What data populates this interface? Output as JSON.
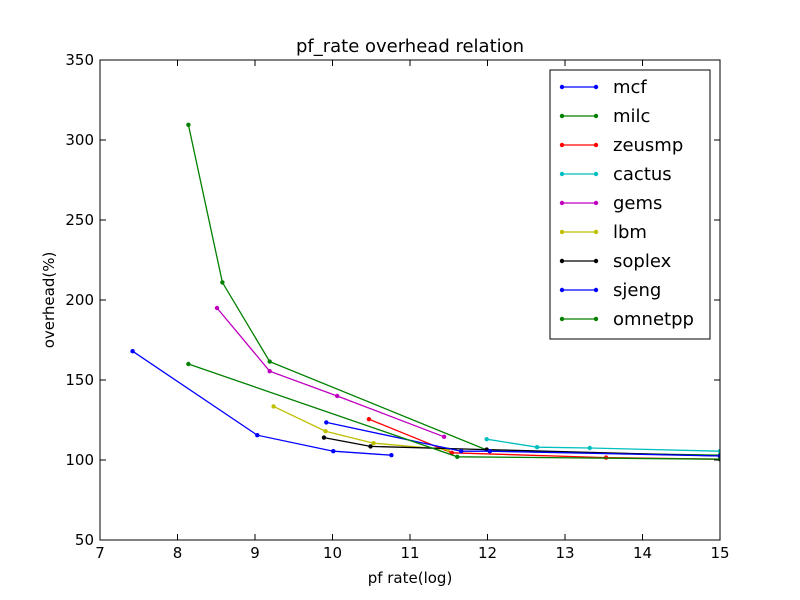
{
  "chart_data": {
    "type": "line",
    "title": "pf_rate overhead relation",
    "xlabel": "pf rate(log)",
    "ylabel": "overhead(%)",
    "xlim": [
      7,
      15
    ],
    "ylim": [
      50,
      350
    ],
    "xticks": [
      7,
      8,
      9,
      10,
      11,
      12,
      13,
      14,
      15
    ],
    "yticks": [
      50,
      100,
      150,
      200,
      250,
      300,
      350
    ],
    "grid": false,
    "legend_position": "top-right",
    "series": [
      {
        "name": "mcf",
        "color": "#0000ff",
        "points": [
          [
            7.42,
            168
          ],
          [
            9.03,
            115.5
          ],
          [
            10.01,
            105.5
          ],
          [
            10.76,
            103
          ]
        ]
      },
      {
        "name": "milc",
        "color": "#008000",
        "points": [
          [
            8.14,
            309.5
          ],
          [
            8.58,
            211
          ],
          [
            9.19,
            161.5
          ],
          [
            12.03,
            105.5
          ],
          [
            15,
            103
          ]
        ]
      },
      {
        "name": "zeusmp",
        "color": "#ff0000",
        "points": [
          [
            10.47,
            125.5
          ],
          [
            11.54,
            104.5
          ],
          [
            13.53,
            101.5
          ],
          [
            15,
            100.5
          ]
        ]
      },
      {
        "name": "cactus",
        "color": "#00bfbf",
        "points": [
          [
            11.99,
            113
          ],
          [
            12.64,
            108
          ],
          [
            13.32,
            107.5
          ],
          [
            15,
            105.5
          ]
        ]
      },
      {
        "name": "gems",
        "color": "#bf00bf",
        "points": [
          [
            8.51,
            195
          ],
          [
            9.19,
            155.5
          ],
          [
            10.06,
            140
          ],
          [
            11.44,
            114.5
          ]
        ]
      },
      {
        "name": "lbm",
        "color": "#bfbf00",
        "points": [
          [
            9.24,
            133.5
          ],
          [
            9.91,
            118
          ],
          [
            10.53,
            110.5
          ],
          [
            11.49,
            106.5
          ]
        ]
      },
      {
        "name": "soplex",
        "color": "#000000",
        "points": [
          [
            9.89,
            114
          ],
          [
            10.49,
            108.5
          ],
          [
            11.99,
            106.5
          ],
          [
            15,
            102.5
          ]
        ]
      },
      {
        "name": "sjeng",
        "color": "#0000ff",
        "points": [
          [
            9.92,
            123.5
          ],
          [
            11.66,
            105.5
          ],
          [
            12.03,
            105.5
          ],
          [
            15,
            102.5
          ]
        ]
      },
      {
        "name": "omnetpp",
        "color": "#008000",
        "points": [
          [
            8.14,
            160
          ],
          [
            11.61,
            102
          ],
          [
            15,
            100.5
          ]
        ]
      }
    ]
  }
}
